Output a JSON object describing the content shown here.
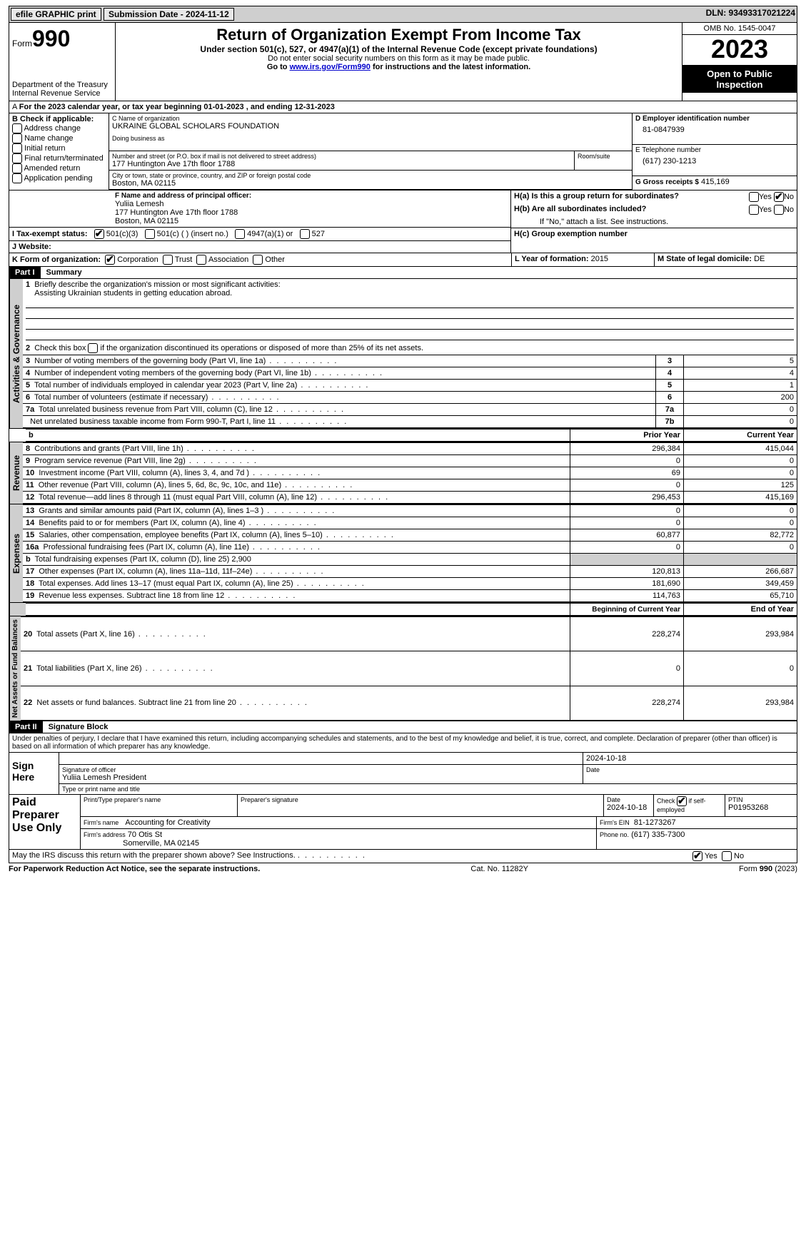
{
  "topbar": {
    "efile_label": "efile GRAPHIC print",
    "submission_label": "Submission Date - 2024-11-12",
    "dln_label": "DLN: 93493317021224"
  },
  "header": {
    "form_prefix": "Form",
    "form_number": "990",
    "dept": "Department of the Treasury Internal Revenue Service",
    "title": "Return of Organization Exempt From Income Tax",
    "subtitle": "Under section 501(c), 527, or 4947(a)(1) of the Internal Revenue Code (except private foundations)",
    "ssn_warning": "Do not enter social security numbers on this form as it may be made public.",
    "goto_prefix": "Go to ",
    "goto_link": "www.irs.gov/Form990",
    "goto_suffix": " for instructions and the latest information.",
    "omb": "OMB No. 1545-0047",
    "year": "2023",
    "inspection": "Open to Public Inspection"
  },
  "line_a": "For the 2023 calendar year, or tax year beginning 01-01-2023   , and ending 12-31-2023",
  "box_b": {
    "title": "B Check if applicable:",
    "items": [
      "Address change",
      "Name change",
      "Initial return",
      "Final return/terminated",
      "Amended return",
      "Application pending"
    ],
    "checked": [
      false,
      false,
      false,
      false,
      false,
      false
    ]
  },
  "box_c": {
    "label_name": "C Name of organization",
    "org_name": "UKRAINE GLOBAL SCHOLARS FOUNDATION",
    "dba_label": "Doing business as",
    "addr_label": "Number and street (or P.O. box if mail is not delivered to street address)",
    "addr": "177 Huntington Ave 17th floor 1788",
    "room_label": "Room/suite",
    "city_label": "City or town, state or province, country, and ZIP or foreign postal code",
    "city": "Boston, MA  02115"
  },
  "box_d": {
    "label": "D Employer identification number",
    "value": "81-0847939"
  },
  "box_e": {
    "label": "E Telephone number",
    "value": "(617) 230-1213"
  },
  "box_g": {
    "label": "G Gross receipts $",
    "value": "415,169"
  },
  "box_f": {
    "label": "F  Name and address of principal officer:",
    "name": "Yuliia Lemesh",
    "addr1": "177 Huntington Ave 17th floor 1788",
    "addr2": "Boston, MA  02115"
  },
  "box_h": {
    "a_label": "H(a)  Is this a group return for subordinates?",
    "b_label": "H(b)  Are all subordinates included?",
    "note": "If \"No,\" attach a list. See instructions.",
    "c_label": "H(c)  Group exemption number",
    "yes": "Yes",
    "no": "No",
    "a_checked": "no"
  },
  "tax_exempt": {
    "label": "I   Tax-exempt status:",
    "opt1": "501(c)(3)",
    "opt2": "501(c) (   ) (insert no.)",
    "opt3": "4947(a)(1) or",
    "opt4": "527",
    "checked": 0
  },
  "website_label": "J   Website:",
  "box_k": {
    "label": "K Form of organization:",
    "opts": [
      "Corporation",
      "Trust",
      "Association",
      "Other"
    ],
    "checked": 0
  },
  "box_l": {
    "label": "L Year of formation:",
    "value": "2015"
  },
  "box_m": {
    "label": "M State of legal domicile:",
    "value": "DE"
  },
  "part1": {
    "header": "Part I",
    "title": "Summary",
    "l1_label": "Briefly describe the organization's mission or most significant activities:",
    "l1_value": "Assisting Ukrainian students in getting education abroad.",
    "l2": "Check this box      if the organization discontinued its operations or disposed of more than 25% of its net assets.",
    "section_ag": "Activities & Governance",
    "rows_ag": [
      {
        "num": "3",
        "label": "Number of voting members of the governing body (Part VI, line 1a)",
        "cell": "3",
        "val": "5"
      },
      {
        "num": "4",
        "label": "Number of independent voting members of the governing body (Part VI, line 1b)",
        "cell": "4",
        "val": "4"
      },
      {
        "num": "5",
        "label": "Total number of individuals employed in calendar year 2023 (Part V, line 2a)",
        "cell": "5",
        "val": "1"
      },
      {
        "num": "6",
        "label": "Total number of volunteers (estimate if necessary)",
        "cell": "6",
        "val": "200"
      },
      {
        "num": "7a",
        "label": "Total unrelated business revenue from Part VIII, column (C), line 12",
        "cell": "7a",
        "val": "0"
      },
      {
        "num": "",
        "label": "Net unrelated business taxable income from Form 990-T, Part I, line 11",
        "cell": "7b",
        "val": "0"
      }
    ],
    "prior_year": "Prior Year",
    "current_year": "Current Year",
    "section_rev": "Revenue",
    "rows_rev": [
      {
        "num": "8",
        "label": "Contributions and grants (Part VIII, line 1h)",
        "py": "296,384",
        "cy": "415,044"
      },
      {
        "num": "9",
        "label": "Program service revenue (Part VIII, line 2g)",
        "py": "0",
        "cy": "0"
      },
      {
        "num": "10",
        "label": "Investment income (Part VIII, column (A), lines 3, 4, and 7d )",
        "py": "69",
        "cy": "0"
      },
      {
        "num": "11",
        "label": "Other revenue (Part VIII, column (A), lines 5, 6d, 8c, 9c, 10c, and 11e)",
        "py": "0",
        "cy": "125"
      },
      {
        "num": "12",
        "label": "Total revenue—add lines 8 through 11 (must equal Part VIII, column (A), line 12)",
        "py": "296,453",
        "cy": "415,169"
      }
    ],
    "section_exp": "Expenses",
    "rows_exp": [
      {
        "num": "13",
        "label": "Grants and similar amounts paid (Part IX, column (A), lines 1–3 )",
        "py": "0",
        "cy": "0"
      },
      {
        "num": "14",
        "label": "Benefits paid to or for members (Part IX, column (A), line 4)",
        "py": "0",
        "cy": "0"
      },
      {
        "num": "15",
        "label": "Salaries, other compensation, employee benefits (Part IX, column (A), lines 5–10)",
        "py": "60,877",
        "cy": "82,772"
      },
      {
        "num": "16a",
        "label": "Professional fundraising fees (Part IX, column (A), line 11e)",
        "py": "0",
        "cy": "0"
      },
      {
        "num": "b",
        "label": "Total fundraising expenses (Part IX, column (D), line 25) 2,900",
        "py": "",
        "cy": "",
        "shade": true
      },
      {
        "num": "17",
        "label": "Other expenses (Part IX, column (A), lines 11a–11d, 11f–24e)",
        "py": "120,813",
        "cy": "266,687"
      },
      {
        "num": "18",
        "label": "Total expenses. Add lines 13–17 (must equal Part IX, column (A), line 25)",
        "py": "181,690",
        "cy": "349,459"
      },
      {
        "num": "19",
        "label": "Revenue less expenses. Subtract line 18 from line 12",
        "py": "114,763",
        "cy": "65,710"
      }
    ],
    "begin_year": "Beginning of Current Year",
    "end_year": "End of Year",
    "section_net": "Net Assets or Fund Balances",
    "rows_net": [
      {
        "num": "20",
        "label": "Total assets (Part X, line 16)",
        "py": "228,274",
        "cy": "293,984"
      },
      {
        "num": "21",
        "label": "Total liabilities (Part X, line 26)",
        "py": "0",
        "cy": "0"
      },
      {
        "num": "22",
        "label": "Net assets or fund balances. Subtract line 21 from line 20",
        "py": "228,274",
        "cy": "293,984"
      }
    ]
  },
  "part2": {
    "header": "Part II",
    "title": "Signature Block",
    "declaration": "Under penalties of perjury, I declare that I have examined this return, including accompanying schedules and statements, and to the best of my knowledge and belief, it is true, correct, and complete. Declaration of preparer (other than officer) is based on all information of which preparer has any knowledge.",
    "sign_here": "Sign Here",
    "sig_date": "2024-10-18",
    "sig_officer_label": "Signature of officer",
    "sig_officer_name": "Yuliia Lemesh  President",
    "type_name_label": "Type or print name and title",
    "date_label": "Date",
    "paid_preparer": "Paid Preparer Use Only",
    "print_name_label": "Print/Type preparer's name",
    "prep_sig_label": "Preparer's signature",
    "prep_date_label": "Date",
    "prep_date": "2024-10-18",
    "check_self_label": "Check       if self-employed",
    "ptin_label": "PTIN",
    "ptin": "P01953268",
    "firm_name_label": "Firm's name",
    "firm_name": "Accounting for Creativity",
    "firm_ein_label": "Firm's EIN",
    "firm_ein": "81-1273267",
    "firm_addr_label": "Firm's address",
    "firm_addr1": "70 Otis St",
    "firm_addr2": "Somerville, MA  02145",
    "phone_label": "Phone no.",
    "phone": "(617) 335-7300",
    "may_irs": "May the IRS discuss this return with the preparer shown above? See Instructions.",
    "yes": "Yes",
    "no": "No"
  },
  "footer": {
    "left": "For Paperwork Reduction Act Notice, see the separate instructions.",
    "mid": "Cat. No. 11282Y",
    "right_prefix": "Form ",
    "right_form": "990",
    "right_suffix": " (2023)"
  }
}
